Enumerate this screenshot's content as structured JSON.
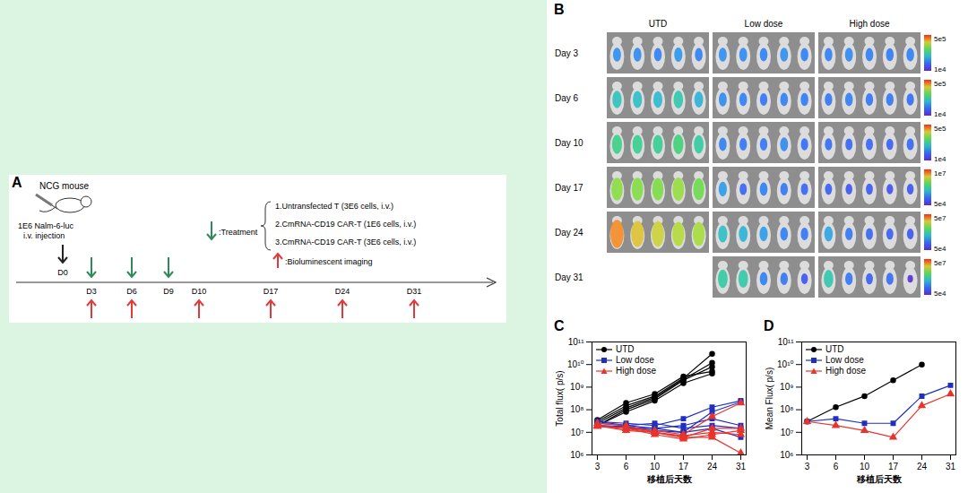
{
  "schematic": {
    "letter": "A",
    "animal": "NCG mouse",
    "injection": [
      "1E6 Nalm-6-luc",
      "i.v. injection"
    ],
    "days": [
      "D0",
      "D3",
      "D6",
      "D9",
      "D10",
      "D17",
      "D24",
      "D31"
    ],
    "injection_day": "D0",
    "treatment_days": [
      "D3",
      "D6",
      "D9"
    ],
    "imaging_days": [
      "D3",
      "D6",
      "D10",
      "D17",
      "D24",
      "D31"
    ],
    "treatment_label": ":Treatment",
    "treatment_groups": [
      "1.Untransfected T (3E6 cells, i.v.)",
      "2.CmRNA-CD19 CAR-T (1E6 cells, i.v.)",
      "3.CmRNA-CD19 CAR-T (3E6 cells, i.v.)"
    ],
    "imaging_label": ":Bioluminescent imaging"
  },
  "imaging": {
    "letter": "B",
    "columns": [
      "UTD",
      "Low dose",
      "High dose"
    ],
    "rows": [
      {
        "label": "Day 3",
        "scale_max": "5e5",
        "scale_min": "1e4"
      },
      {
        "label": "Day 6",
        "scale_max": "5e5",
        "scale_min": "1e4"
      },
      {
        "label": "Day 10",
        "scale_max": "5e5",
        "scale_min": "1e4"
      },
      {
        "label": "Day 17",
        "scale_max": "1e7",
        "scale_min": "5e4"
      },
      {
        "label": "Day 24",
        "scale_max": "5e7",
        "scale_min": "5e4"
      },
      {
        "label": "Day 31",
        "scale_max": "5e7",
        "scale_min": "5e4"
      }
    ]
  },
  "chart_data": [
    {
      "type": "line",
      "title": "C",
      "x_label": "移植后天数",
      "y_label": "Total flux( p/s)",
      "categories": [
        "3",
        "6",
        "10",
        "17",
        "24",
        "31"
      ],
      "log": "y",
      "ylim": [
        1000000,
        100000000000
      ],
      "yticks": [
        {
          "value": 1000000,
          "label": "10⁶"
        },
        {
          "value": 10000000,
          "label": "10⁷"
        },
        {
          "value": 100000000,
          "label": "10⁸"
        },
        {
          "value": 1000000000,
          "label": "10⁹"
        },
        {
          "value": 10000000000,
          "label": "10¹⁰"
        },
        {
          "value": 100000000000,
          "label": "10¹¹"
        }
      ],
      "legend": "top-left",
      "series": [
        {
          "name": "UTD",
          "color": "#000000",
          "marker": "circle",
          "values": [
            [
              30000000.0,
              150000000.0,
              400000000.0,
              2500000000.0,
              30000000000.0,
              null
            ],
            [
              25000000.0,
              120000000.0,
              350000000.0,
              2200000000.0,
              12000000000.0,
              null
            ],
            [
              20000000.0,
              100000000.0,
              300000000.0,
              2000000000.0,
              8000000000.0,
              null
            ],
            [
              35000000.0,
              200000000.0,
              500000000.0,
              3000000000.0,
              5000000000.0,
              null
            ],
            [
              20000000.0,
              80000000.0,
              250000000.0,
              1500000000.0,
              4000000000.0,
              null
            ]
          ]
        },
        {
          "name": "Low dose",
          "color": "#1f2fbf",
          "marker": "square",
          "values": [
            [
              30000000.0,
              25000000.0,
              20000000.0,
              40000000.0,
              130000000.0,
              250000000.0
            ],
            [
              25000000.0,
              20000000.0,
              15000000.0,
              10000000.0,
              80000000.0,
              220000000.0
            ],
            [
              20000000.0,
              15000000.0,
              15000000.0,
              20000000.0,
              40000000.0,
              20000000.0
            ],
            [
              30000000.0,
              20000000.0,
              25000000.0,
              15000000.0,
              20000000.0,
              15000000.0
            ],
            [
              20000000.0,
              18000000.0,
              12000000.0,
              10000000.0,
              15000000.0,
              6000000.0
            ]
          ]
        },
        {
          "name": "High dose",
          "color": "#e8342c",
          "marker": "triangle",
          "values": [
            [
              20000000.0,
              15000000.0,
              12000000.0,
              8000000.0,
              50000000.0,
              200000000.0
            ],
            [
              25000000.0,
              20000000.0,
              10000000.0,
              6000000.0,
              15000000.0,
              15000000.0
            ],
            [
              20000000.0,
              15000000.0,
              10000000.0,
              7000000.0,
              10000000.0,
              8000000.0
            ],
            [
              18000000.0,
              15000000.0,
              8000000.0,
              5000000.0,
              8000000.0,
              12000000.0
            ],
            [
              20000000.0,
              12000000.0,
              10000000.0,
              6000000.0,
              6000000.0,
              1200000.0
            ]
          ]
        }
      ]
    },
    {
      "type": "line",
      "title": "D",
      "x_label": "移植后天数",
      "y_label": "Mean Flux( p/s)",
      "categories": [
        "3",
        "6",
        "10",
        "17",
        "24",
        "31"
      ],
      "log": "y",
      "ylim": [
        1000000,
        100000000000
      ],
      "yticks": [
        {
          "value": 1000000,
          "label": "10⁶"
        },
        {
          "value": 10000000,
          "label": "10⁷"
        },
        {
          "value": 100000000,
          "label": "10⁸"
        },
        {
          "value": 1000000000,
          "label": "10⁹"
        },
        {
          "value": 10000000000,
          "label": "10¹⁰"
        },
        {
          "value": 100000000000,
          "label": "10¹¹"
        }
      ],
      "legend": "top-left",
      "series": [
        {
          "name": "UTD",
          "color": "#000000",
          "marker": "circle",
          "values": [
            30000000.0,
            130000000.0,
            400000000.0,
            2000000000.0,
            10000000000.0,
            null
          ]
        },
        {
          "name": "Low dose",
          "color": "#1f2fbf",
          "marker": "square",
          "values": [
            30000000.0,
            40000000.0,
            25000000.0,
            25000000.0,
            400000000.0,
            1200000000.0
          ]
        },
        {
          "name": "High dose",
          "color": "#e8342c",
          "marker": "triangle",
          "values": [
            30000000.0,
            20000000.0,
            12000000.0,
            6000000.0,
            150000000.0,
            500000000.0
          ]
        }
      ]
    }
  ]
}
